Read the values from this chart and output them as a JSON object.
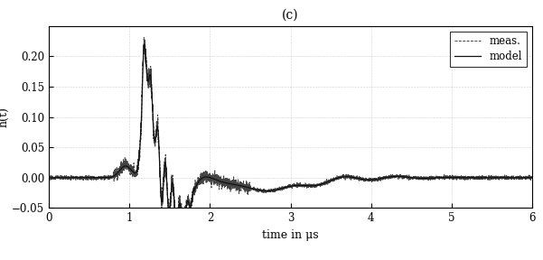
{
  "title": "(c)",
  "xlabel": "time in μs",
  "ylabel": "h(t)",
  "xlim": [
    0,
    6
  ],
  "ylim": [
    -0.05,
    0.25
  ],
  "yticks": [
    -0.05,
    0,
    0.05,
    0.1,
    0.15,
    0.2
  ],
  "xticks": [
    0,
    1,
    2,
    3,
    4,
    5,
    6
  ],
  "legend_labels": [
    "meas.",
    "model"
  ],
  "meas_color": "#444444",
  "model_color": "#111111",
  "grid_color": "#aaaaaa",
  "title_fontsize": 10,
  "label_fontsize": 9,
  "tick_fontsize": 8.5
}
